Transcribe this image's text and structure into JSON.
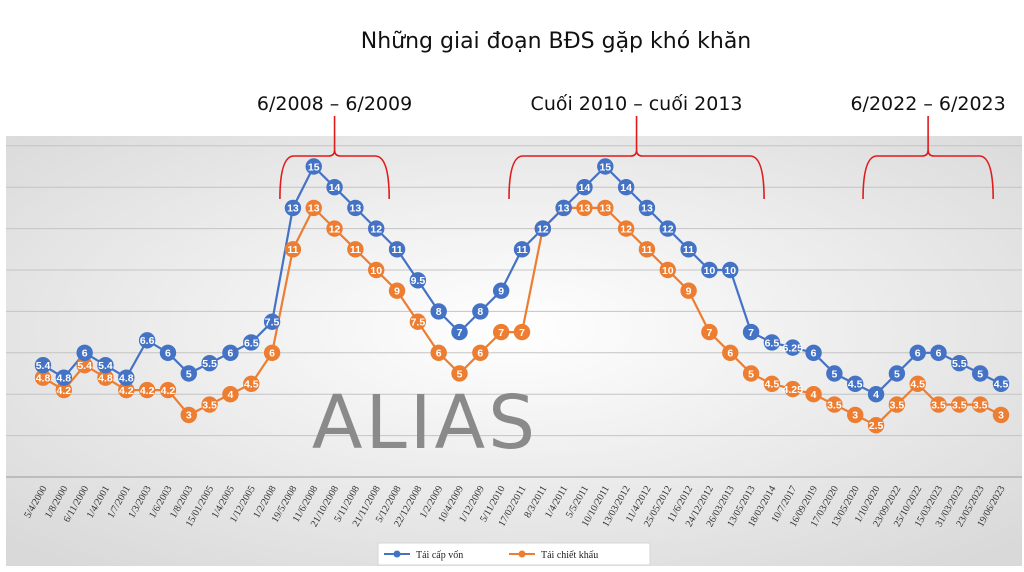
{
  "chart_data": {
    "type": "line",
    "title": "Những giai đoạn BĐS gặp khó khăn",
    "categories": [
      "5/4/2000",
      "1/8/2000",
      "6/11/2000",
      "1/4/2001",
      "1/7/2001",
      "1/3/2003",
      "1/6/2003",
      "1/8/2003",
      "15/01/2005",
      "1/4/2005",
      "1/12/2005",
      "1/2/2008",
      "19/5/2008",
      "11/6/2008",
      "21/10/2008",
      "5/11/2008",
      "21/11/2008",
      "5/12/2008",
      "22/12/2008",
      "1/2/2009",
      "10/4/2009",
      "1/12/2009",
      "5/11/2010",
      "17/02/2011",
      "8/3/2011",
      "1/4/2011",
      "5/5/2011",
      "10/10/2011",
      "13/03/2012",
      "11/4/2012",
      "25/05/2012",
      "11/6/2012",
      "24/12/2012",
      "26/03/2013",
      "13/05/2013",
      "18/03/2014",
      "10/7/2017",
      "16/09/2019",
      "17/03/2020",
      "13/05/2020",
      "1/10/2020",
      "23/09/2022",
      "25/10/2022",
      "15/03/2023",
      "31/03/2023",
      "23/05/2023",
      "19/06/2023"
    ],
    "series": [
      {
        "name": "Tái cấp vốn",
        "color": "#4472c4",
        "values": [
          5.4,
          4.8,
          6,
          5.4,
          4.8,
          6.6,
          6,
          5,
          5.5,
          6,
          6.5,
          7.5,
          13,
          15,
          14,
          13,
          12,
          11,
          9.5,
          8,
          7,
          8,
          9,
          11,
          12,
          13,
          14,
          15,
          14,
          13,
          12,
          11,
          10,
          10,
          7,
          6.5,
          6.25,
          6,
          5,
          4.5,
          4,
          5,
          6,
          6,
          5.5,
          5,
          4.5
        ]
      },
      {
        "name": "Tái chiết khấu",
        "color": "#ed7d31",
        "values": [
          4.8,
          4.2,
          5.4,
          4.8,
          4.2,
          4.2,
          4.2,
          3,
          3.5,
          4,
          4.5,
          6,
          11,
          13,
          12,
          11,
          10,
          9,
          7.5,
          6,
          5,
          6,
          7,
          7,
          12,
          13,
          13,
          13,
          12,
          11,
          10,
          9,
          7,
          6,
          5,
          4.5,
          4.25,
          4,
          3.5,
          3,
          2.5,
          3.5,
          4.5,
          3.5,
          3.5,
          3.5,
          3
        ]
      }
    ],
    "ylim": [
      0,
      18
    ],
    "grid": true,
    "legend": "bottom",
    "annotations": [
      {
        "label": "6/2008 – 6/2009",
        "from": "19/5/2008",
        "to": "21/11/2008"
      },
      {
        "label": "Cuối 2010 – cuối 2013",
        "from": "17/02/2011",
        "to": "13/05/2013"
      },
      {
        "label": "6/2022 – 6/2023",
        "from": "1/10/2020",
        "to": "23/05/2023"
      }
    ],
    "watermark": "ALIAS"
  }
}
